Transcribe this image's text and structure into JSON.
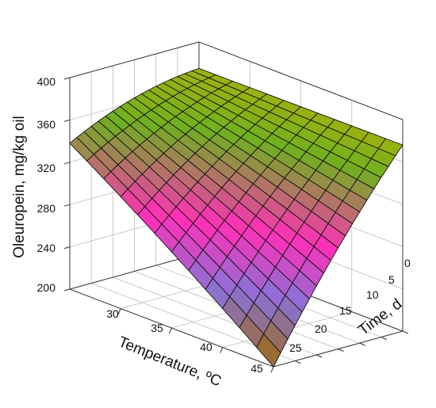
{
  "chart_data": {
    "type": "surface",
    "title": "",
    "xlabel": "Temperature, ºC",
    "ylabel": "Time, d",
    "zlabel": "Oleuropein, mg/kg oil",
    "x_range": [
      25,
      45
    ],
    "y_range": [
      0,
      30
    ],
    "z_range": [
      200,
      400
    ],
    "x_ticks": [
      "30",
      "35",
      "40",
      "45"
    ],
    "y_ticks": [
      "0",
      "5",
      "10",
      "15",
      "20",
      "25"
    ],
    "z_ticks": [
      "200",
      "240",
      "280",
      "320",
      "360",
      "400"
    ],
    "grid": true,
    "surface_corners": [
      {
        "temperature": 25,
        "time": 0,
        "oleuropein": 375
      },
      {
        "temperature": 45,
        "time": 0,
        "oleuropein": 376
      },
      {
        "temperature": 25,
        "time": 30,
        "oleuropein": 338
      },
      {
        "temperature": 45,
        "time": 30,
        "oleuropein": 200
      }
    ],
    "colors": {
      "high": "#c8b400",
      "upper": "#6fb020",
      "mid": "#ff2fb8",
      "lower": "#8a72d8",
      "low": "#a06a00"
    }
  }
}
